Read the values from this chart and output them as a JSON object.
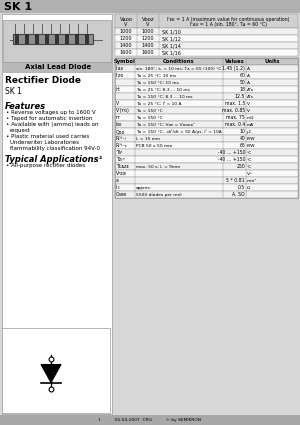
{
  "title": "SK 1",
  "title_bg": "#b0b0b0",
  "page_bg": "#d8d8d8",
  "content_bg": "#ffffff",
  "footer_text": "1          04-04-2007  CRG          © by SEMIKRON",
  "footer_bg": "#a8a8a8",
  "left_panel": {
    "image_label": "Axial Lead Diode",
    "subtitle": "Rectifier Diode",
    "part_number": "SK 1",
    "features_title": "Features",
    "features": [
      "Reverse voltages up to 1600 V",
      "Taped for automatic insertion",
      "Available with (ammo) leads on\nrequest",
      "Plastic material used carries\nUnderwriter Laboratories\nflammability classification 94V-0"
    ],
    "applications_title": "Typical Applications¹",
    "applications": [
      "All-purpose rectifier diodes"
    ]
  },
  "top_table": {
    "col1_header": "Vᴀᴏᴏ",
    "col1_unit": "V",
    "col2_header": "Vᴀᴏᴏ",
    "col2_unit": "V",
    "col3_line1": "Iᶠᴇᴋ = 1 A (maximum value for continuous operation)",
    "col3_line2": "Iᶠᴀᴠ = 1 A (sin. 180°, Tᴀ = 60 °C)",
    "rows": [
      [
        "1000",
        "1000",
        "SK 1/10"
      ],
      [
        "1200",
        "1200",
        "SK 1/12"
      ],
      [
        "1400",
        "1400",
        "SK 1/14"
      ],
      [
        "1600",
        "1600",
        "SK 1/16"
      ]
    ]
  },
  "main_table": {
    "headers": [
      "Symbol",
      "Conditions",
      "Values",
      "Units"
    ],
    "rows": [
      [
        "Iᶠᴀᴠ",
        "sin. 180°; tₚ = 10 ms; Tᴀ = 65 (100) °C",
        "1.45 (1.2)",
        "A"
      ],
      [
        "Iᶠᴢᴏ",
        "Tᴀ = 25 °C; 10 ms",
        "60",
        "A"
      ],
      [
        "",
        "Tᴀ = 150 °C; 10 ms",
        "50",
        "A"
      ],
      [
        "i²t",
        "Tᴀ = 25 °C; 8.3 ... 10 ms",
        "18",
        "A²s"
      ],
      [
        "",
        "Tᴀ = 150 °C; 8.3 ... 10 ms",
        "12.5",
        "A²s"
      ],
      [
        "Vᶠ",
        "Tᴀ = 25 °C; Iᶠ = 10 A",
        "max. 1.5",
        "V"
      ],
      [
        "Vᶠ(ᴛᴏ)",
        "Tᴀ = 150 °C",
        "max. 0.85",
        "V"
      ],
      [
        "rᴛ",
        "Tᴀ = 150 °C",
        "max. 75",
        "mΩ"
      ],
      [
        "Iᴏᴇ",
        "Tᴀ = 150 °C; Vᴏᴇ = Vᴏᴏᴏᴀˣ",
        "max. 0.4",
        "mA"
      ],
      [
        "Qᴏᴏ",
        "Tᴀ = 150 °C; -diᶠ/dt = 50 A/μs; Iᶠ = 10A",
        "10",
        "μC"
      ],
      [
        "Rₜʰʲ₋ₗ",
        "lₜ = 10 mm",
        "40",
        "K/W"
      ],
      [
        "Rₜʰʲ₋ₐ",
        "PCB 50 x 50 mm",
        "65",
        "K/W"
      ],
      [
        "Tᴠʲ",
        "",
        "-40 ... +150",
        "°C"
      ],
      [
        "Tᴢₜᵍ",
        "",
        "-40 ... +150",
        "°C"
      ],
      [
        "Tᴄᴀᴢᴇ",
        "max. 50 s; lₜ = 9mm",
        "250",
        "°C"
      ],
      [
        "Vᶢᴢᴏₗ",
        "",
        "",
        "V~"
      ],
      [
        "a",
        "",
        "5 * 0.81",
        "mm²"
      ],
      [
        "lₜ₀",
        "approx.",
        "0.5",
        "Ω"
      ],
      [
        "Case",
        "5500 diodes per reel",
        "A, SO",
        ""
      ]
    ]
  }
}
